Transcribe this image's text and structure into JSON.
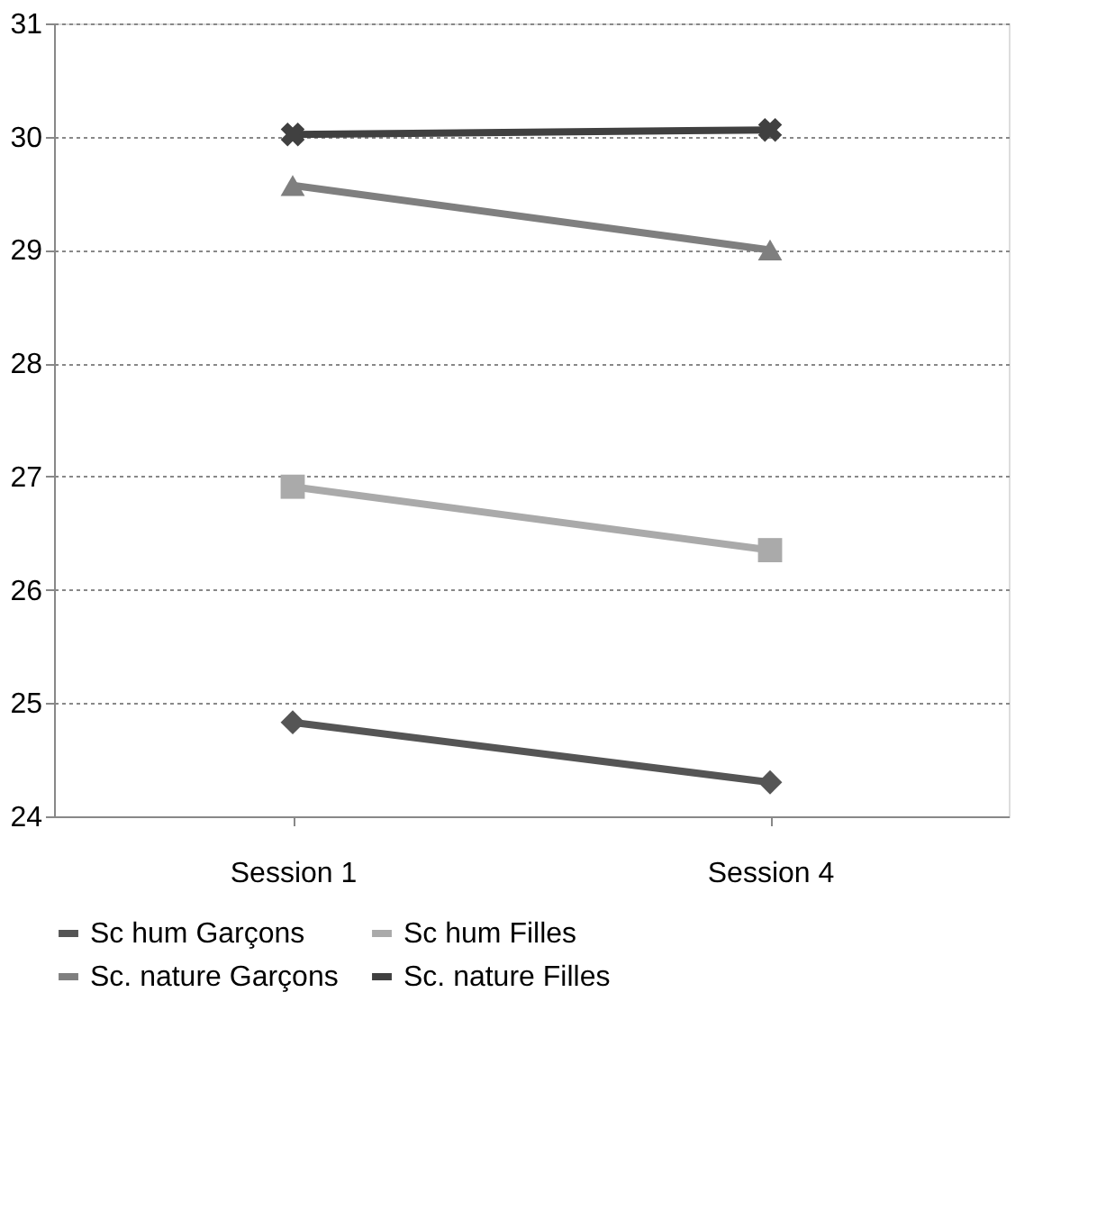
{
  "chart_data": {
    "type": "line",
    "categories": [
      "Session 1",
      "Session 4"
    ],
    "series": [
      {
        "name": "Sc hum Garçons",
        "color": "#555555",
        "marker": "diamond",
        "values": [
          24.83,
          24.3
        ]
      },
      {
        "name": "Sc hum Filles",
        "color": "#aaaaaa",
        "marker": "square",
        "values": [
          26.91,
          26.35
        ]
      },
      {
        "name": "Sc. nature Garçons",
        "color": "#7f7f7f",
        "marker": "triangle",
        "values": [
          29.57,
          29.0
        ]
      },
      {
        "name": "Sc. nature Filles",
        "color": "#404040",
        "marker": "cross",
        "values": [
          30.02,
          30.06
        ]
      }
    ],
    "ylim": [
      24,
      31
    ],
    "yticks": [
      24,
      25,
      26,
      27,
      28,
      29,
      30,
      31
    ],
    "grid": "y",
    "legend": "bottom",
    "line_style": "solid"
  }
}
